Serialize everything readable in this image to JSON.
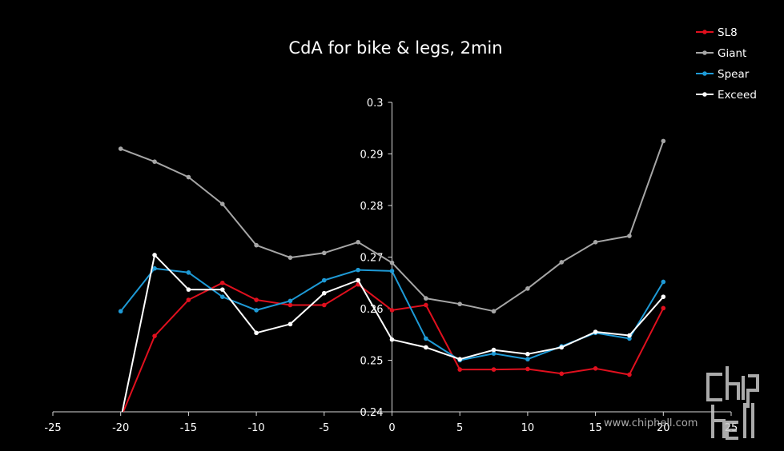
{
  "chart_data": {
    "type": "line",
    "title": "CdA for bike & legs, 2min",
    "xlabel": "",
    "ylabel": "",
    "xlim": [
      -25,
      25
    ],
    "ylim": [
      0.24,
      0.3
    ],
    "x_ticks": [
      -25,
      -20,
      -15,
      -10,
      -5,
      0,
      5,
      10,
      15,
      20,
      25
    ],
    "y_ticks": [
      0.24,
      0.25,
      0.26,
      0.27,
      0.28,
      0.29,
      0.3
    ],
    "x_tick_labels": [
      "-25",
      "-20",
      "-15",
      "-10",
      "-5",
      "0",
      "5",
      "10",
      "15",
      "20",
      "25"
    ],
    "y_tick_labels": [
      "0.24",
      "0.25",
      "0.26",
      "0.27",
      "0.28",
      "0.29",
      "0.3"
    ],
    "legend_position": "top-right",
    "grid": false,
    "x": [
      -20,
      -17.5,
      -15,
      -12.5,
      -10,
      -7.5,
      -5,
      -2.5,
      0,
      2.5,
      5,
      7.5,
      10,
      12.5,
      15,
      17.5,
      20
    ],
    "series": [
      {
        "name": "SL8",
        "color": "#e0101e",
        "values": [
          0.2388,
          0.2547,
          0.2617,
          0.265,
          0.2617,
          0.2607,
          0.2607,
          0.2647,
          0.2597,
          0.2607,
          0.2482,
          0.2482,
          0.2483,
          0.2474,
          0.2484,
          0.2472,
          0.2601
        ]
      },
      {
        "name": "Giant",
        "color": "#a6a6a6",
        "values": [
          0.291,
          0.2885,
          0.2855,
          0.2803,
          0.2723,
          0.2699,
          0.2708,
          0.2729,
          0.2689,
          0.262,
          0.2609,
          0.2595,
          0.2639,
          0.269,
          0.2729,
          0.2741,
          0.2925
        ]
      },
      {
        "name": "Spear",
        "color": "#1e9ad6",
        "values": [
          0.2595,
          0.2678,
          0.267,
          0.2623,
          0.2597,
          0.2615,
          0.2655,
          0.2675,
          0.2673,
          0.2542,
          0.25,
          0.2513,
          0.2502,
          0.2527,
          0.2553,
          0.2542,
          0.2652
        ]
      },
      {
        "name": "Exceed",
        "color": "#ffffff",
        "values": [
          0.2385,
          0.2704,
          0.2637,
          0.2637,
          0.2553,
          0.257,
          0.263,
          0.2655,
          0.254,
          0.2525,
          0.2502,
          0.252,
          0.2512,
          0.2525,
          0.2555,
          0.2548,
          0.2623
        ]
      }
    ]
  },
  "watermark": {
    "logo_text": "chiphell",
    "url": "www.chiphell.com"
  }
}
